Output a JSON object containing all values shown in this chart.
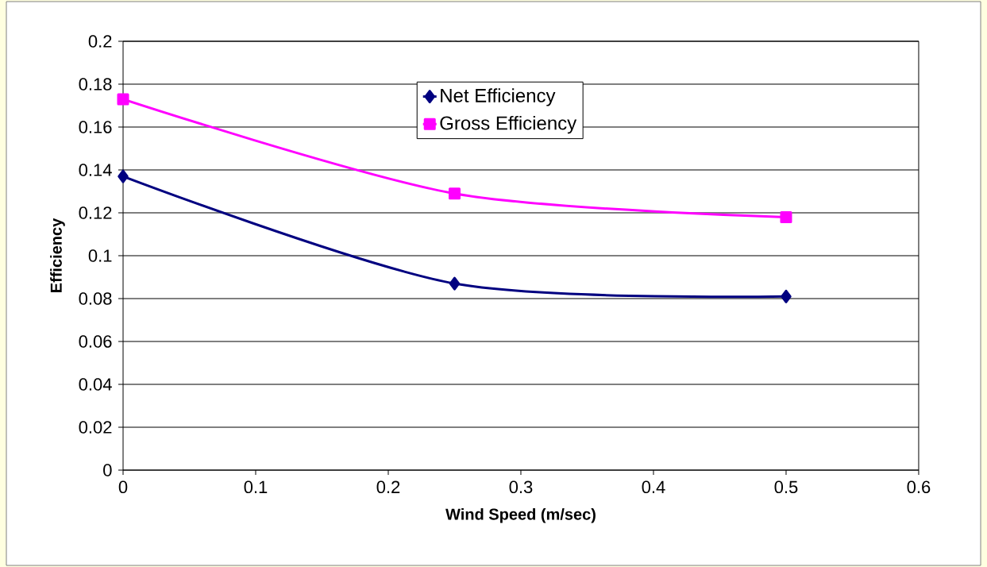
{
  "chart_data": {
    "type": "line",
    "xlabel": "Wind Speed (m/sec)",
    "ylabel": "Efficiency",
    "xlim": [
      0,
      0.6
    ],
    "xticks": [
      0,
      0.1,
      0.2,
      0.3,
      0.4,
      0.5,
      0.6
    ],
    "ylim": [
      0,
      0.2
    ],
    "yticks": [
      0,
      0.02,
      0.04,
      0.06,
      0.08,
      0.1,
      0.12,
      0.14,
      0.16,
      0.18,
      0.2
    ],
    "grid": "y",
    "legend": "top",
    "line_style": "solid",
    "series": [
      {
        "name": "Net Efficiency",
        "color": "#000080",
        "marker": "diamond",
        "x": [
          0,
          0.25,
          0.5
        ],
        "values": [
          0.137,
          0.087,
          0.081
        ]
      },
      {
        "name": "Gross Efficiency",
        "color": "#ff00ff",
        "marker": "square",
        "x": [
          0,
          0.25,
          0.5
        ],
        "values": [
          0.173,
          0.129,
          0.118
        ]
      }
    ]
  }
}
